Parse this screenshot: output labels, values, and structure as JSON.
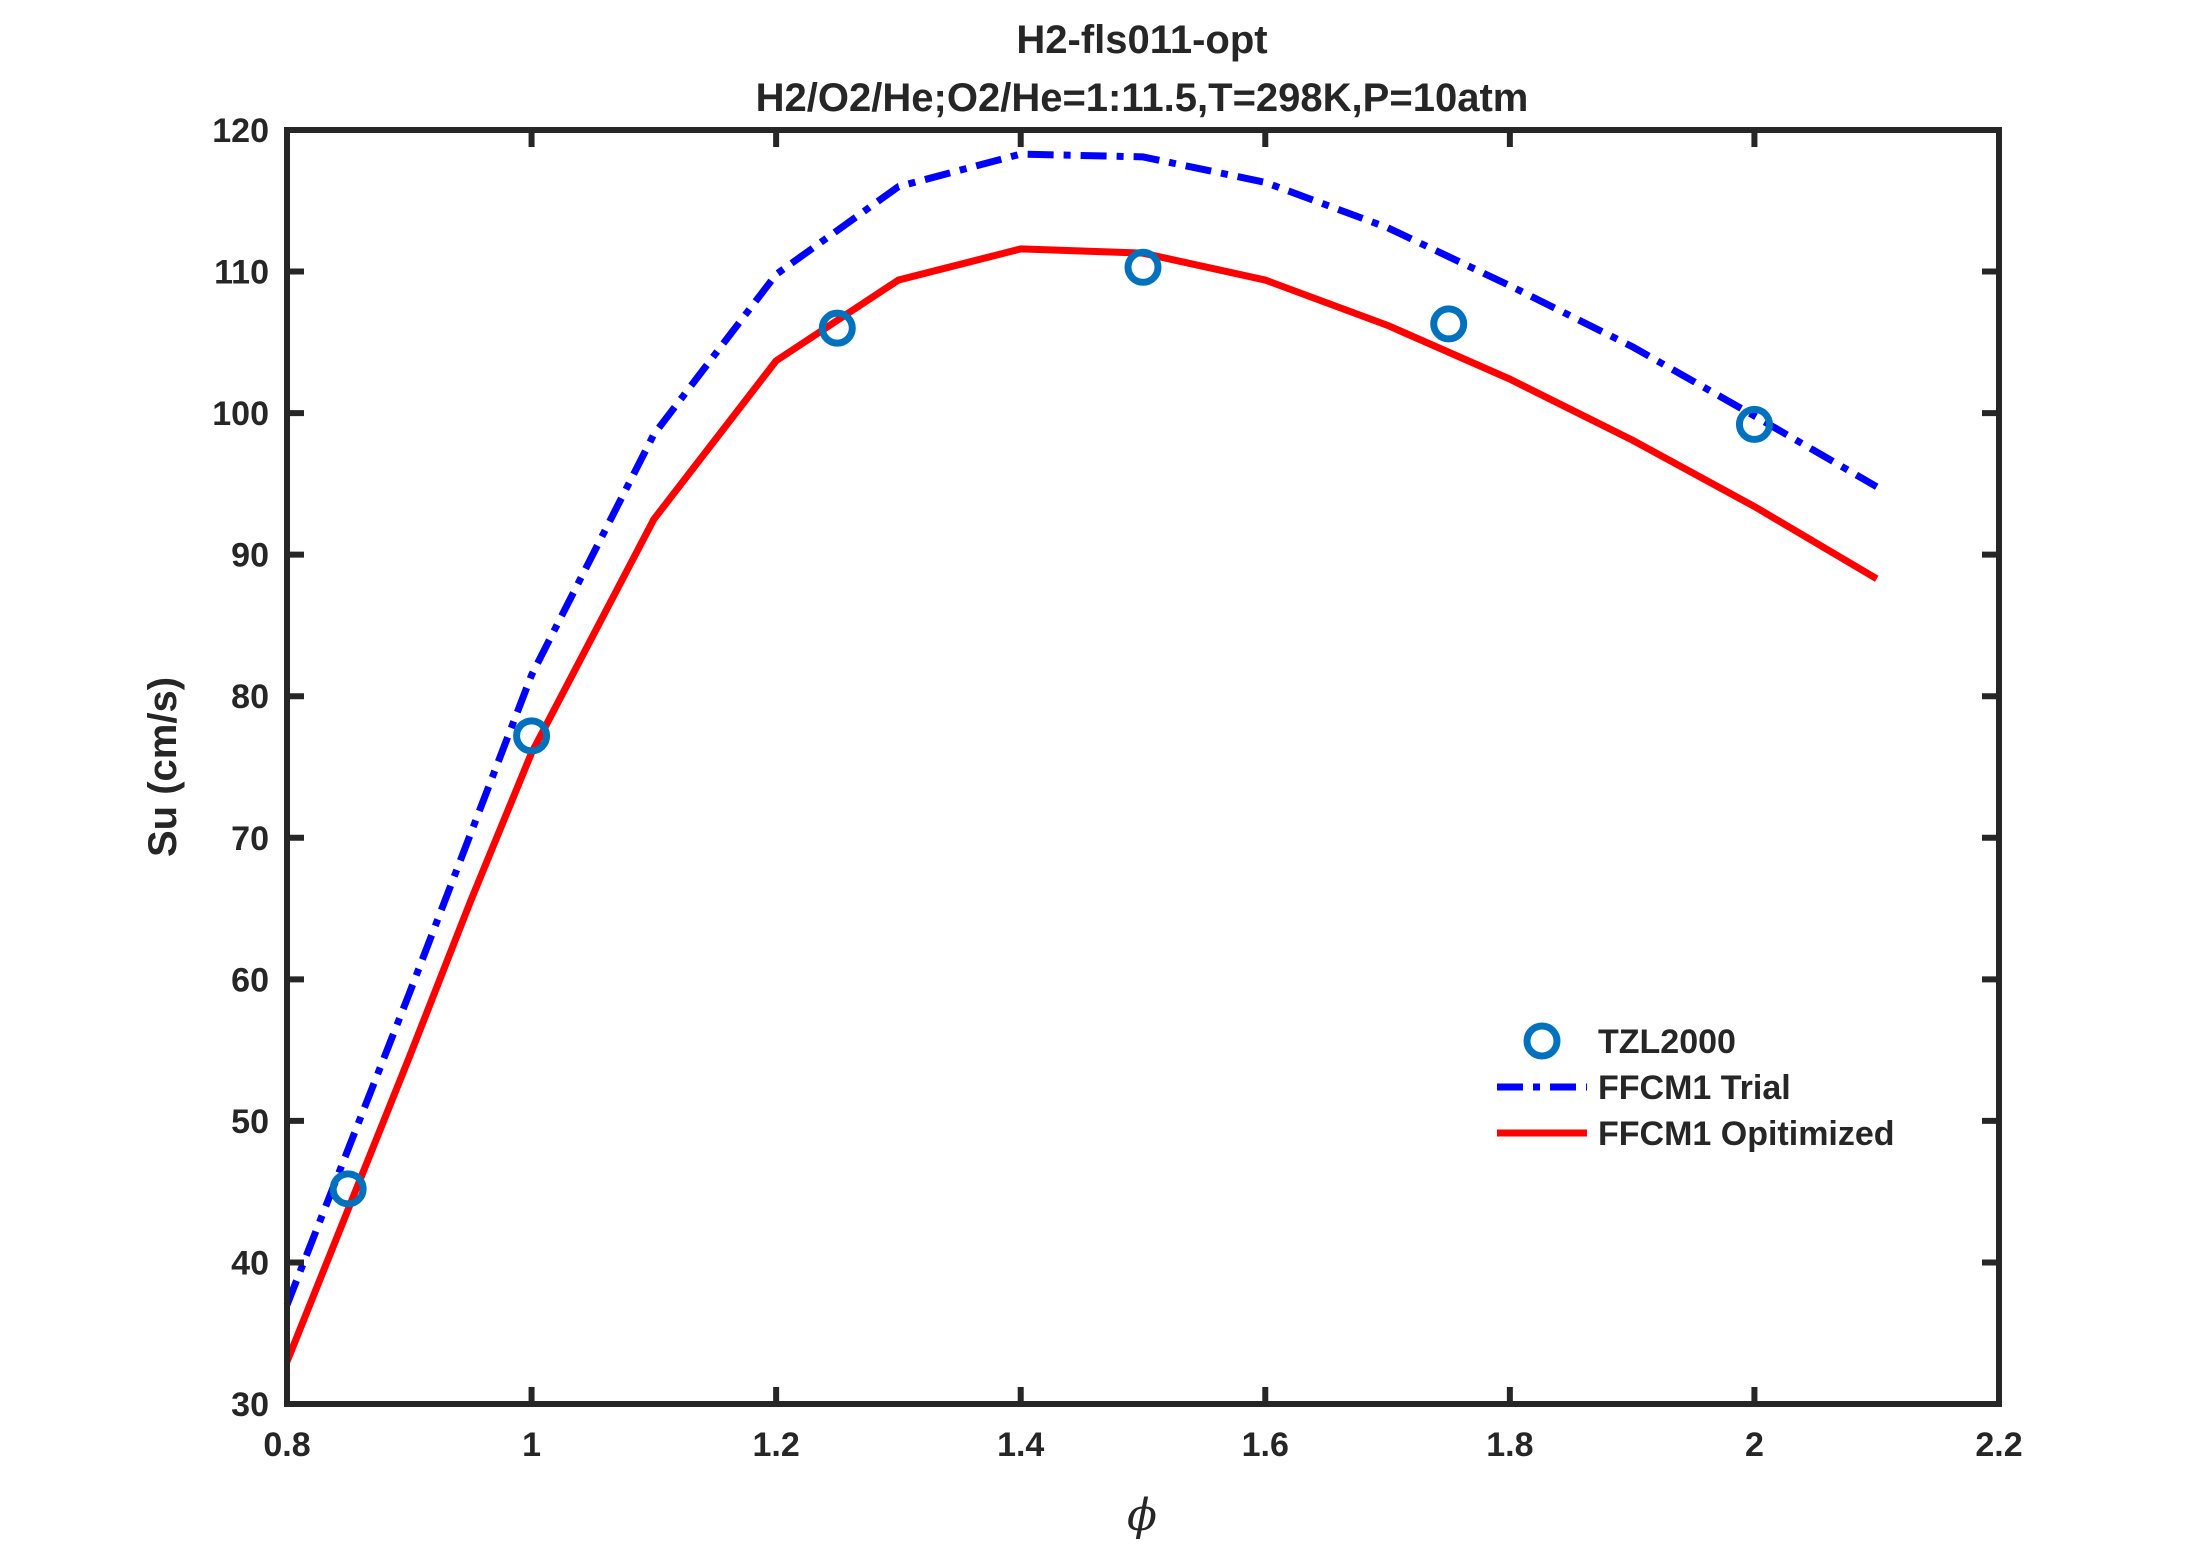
{
  "chart_data": {
    "type": "line",
    "title": "H2-fls011-opt",
    "subtitle": "H2/O2/He;O2/He=1:11.5,T=298K,P=10atm",
    "xlabel": "ϕ",
    "ylabel": "Su (cm/s)",
    "xlim": [
      0.8,
      2.2
    ],
    "ylim": [
      30,
      120
    ],
    "xticks": [
      0.8,
      1,
      1.2,
      1.4,
      1.6,
      1.8,
      2,
      2.2
    ],
    "xtick_labels": [
      "0.8",
      "1",
      "1.2",
      "1.4",
      "1.6",
      "1.8",
      "2",
      "2.2"
    ],
    "yticks": [
      30,
      40,
      50,
      60,
      70,
      80,
      90,
      100,
      110,
      120
    ],
    "ytick_labels": [
      "30",
      "40",
      "50",
      "60",
      "70",
      "80",
      "90",
      "100",
      "110",
      "120"
    ],
    "grid": false,
    "legend_position": "right-middle",
    "series": [
      {
        "name": "TZL2000",
        "style": "markers",
        "marker": "circle",
        "color": "#0072BD",
        "x": [
          0.85,
          1.0,
          1.25,
          1.5,
          1.75,
          2.0
        ],
        "y": [
          45.2,
          77.2,
          106.0,
          110.3,
          106.3,
          99.2
        ]
      },
      {
        "name": "FFCM1 Trial",
        "style": "dashdot",
        "color": "#0000FF",
        "x": [
          0.8,
          0.9,
          1.0,
          1.1,
          1.2,
          1.3,
          1.4,
          1.5,
          1.6,
          1.7,
          1.8,
          1.9,
          2.0,
          2.1
        ],
        "y": [
          37.0,
          59.0,
          81.5,
          98.5,
          109.8,
          116.0,
          118.3,
          118.1,
          116.3,
          113.1,
          109.0,
          104.7,
          99.8,
          94.8
        ]
      },
      {
        "name": "FFCM1 Opitimized",
        "style": "solid",
        "color": "#FF0000",
        "x": [
          0.8,
          0.9,
          0.95,
          1.0,
          1.1,
          1.2,
          1.3,
          1.4,
          1.5,
          1.6,
          1.7,
          1.8,
          1.9,
          2.0,
          2.1
        ],
        "y": [
          33.0,
          54.5,
          65.5,
          76.0,
          92.5,
          103.7,
          109.4,
          111.6,
          111.3,
          109.4,
          106.2,
          102.4,
          98.1,
          93.4,
          88.3
        ]
      }
    ]
  }
}
